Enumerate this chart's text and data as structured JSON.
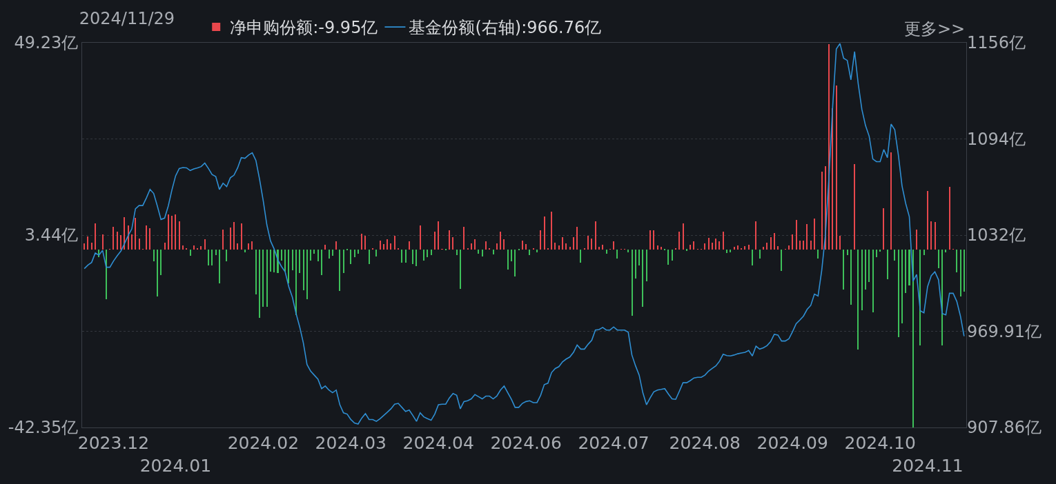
{
  "chart_data": {
    "type": "bar",
    "title": "2024/11/29",
    "annotations": [
      "更多>>"
    ],
    "categories": [
      null,
      null,
      null,
      null,
      null,
      null,
      null,
      null,
      "2023.12",
      null,
      null,
      null,
      null,
      null,
      null,
      null,
      null,
      null,
      null,
      null,
      null,
      null,
      null,
      null,
      null,
      "2024.01",
      null,
      null,
      null,
      null,
      null,
      null,
      null,
      null,
      null,
      null,
      null,
      null,
      null,
      null,
      null,
      null,
      null,
      null,
      null,
      null,
      null,
      null,
      null,
      "2024.02",
      null,
      null,
      null,
      null,
      null,
      null,
      null,
      null,
      null,
      null,
      null,
      null,
      null,
      null,
      null,
      null,
      null,
      null,
      null,
      null,
      null,
      null,
      null,
      "2024.03",
      null,
      null,
      null,
      null,
      null,
      null,
      null,
      null,
      null,
      null,
      null,
      null,
      null,
      null,
      null,
      null,
      null,
      null,
      null,
      null,
      null,
      null,
      null,
      "2024.04",
      null,
      null,
      null,
      null,
      null,
      null,
      null,
      null,
      null,
      null,
      null,
      null,
      null,
      null,
      null,
      null,
      null,
      null,
      null,
      null,
      null,
      null,
      null,
      "2024.06",
      null,
      null,
      null,
      null,
      null,
      null,
      null,
      null,
      null,
      null,
      null,
      null,
      null,
      null,
      null,
      null,
      null,
      null,
      null,
      null,
      null,
      null,
      null,
      "2024.07",
      null,
      null,
      null,
      null,
      null,
      null,
      null,
      null,
      null,
      null,
      null,
      null,
      null,
      null,
      null,
      null,
      null,
      null,
      null,
      null,
      null,
      null,
      null,
      null,
      "2024.08",
      null,
      null,
      null,
      null,
      null,
      null,
      null,
      null,
      null,
      null,
      null,
      null,
      null,
      null,
      null,
      null,
      null,
      null,
      null,
      null,
      null,
      null,
      null,
      "2024.09",
      null,
      null,
      null,
      null,
      null,
      null,
      null,
      null,
      null,
      null,
      null,
      null,
      null,
      null,
      null,
      null,
      null,
      null,
      null,
      null,
      null,
      null,
      null,
      "2024.10",
      null,
      null,
      null,
      null,
      null,
      null,
      null,
      null,
      null,
      null,
      null,
      null,
      "2024.11",
      null,
      null,
      null,
      null,
      null,
      null,
      null,
      null,
      null,
      null
    ],
    "series": [
      {
        "name": "净申购份额:-9.95亿",
        "values": [
          1.4,
          3.1,
          1.6,
          6.3,
          -1.8,
          3.6,
          -11.9,
          0.1,
          5.4,
          4.2,
          3.5,
          7.7,
          5.7,
          3.6,
          7.5,
          2.7,
          0.1,
          5.7,
          5.1,
          -2.8,
          -11.1,
          -6.0,
          1.7,
          8.4,
          8.0,
          8.3,
          6.7,
          0.9,
          0.3,
          -1.5,
          0.9,
          0.4,
          0.8,
          2.5,
          -3.8,
          -3.8,
          -1.3,
          -8.1,
          4.7,
          -2.8,
          5.2,
          6.6,
          1.4,
          6.3,
          -0.6,
          1.5,
          2.0,
          -10.6,
          -16.3,
          -13.6,
          -13.6,
          -5.3,
          -5.4,
          -5.6,
          -2.6,
          -5.3,
          -8.1,
          -5.0,
          -15.6,
          -5.6,
          -9.7,
          -11.9,
          -2.6,
          -1.0,
          -2.8,
          -6.0,
          1.2,
          -2.1,
          -1.5,
          1.9,
          -9.8,
          -5.6,
          -0.2,
          -3.4,
          -1.8,
          -1.0,
          3.8,
          3.2,
          -3.5,
          0.4,
          -1.7,
          2.2,
          1.3,
          2.5,
          1.4,
          3.3,
          0.3,
          -3.1,
          -3.1,
          1.9,
          -3.4,
          -3.9,
          5.7,
          -2.6,
          -1.8,
          -1.3,
          4.2,
          6.7,
          0.1,
          -0.2,
          4.6,
          2.9,
          -1.3,
          -9.3,
          5.4,
          0.3,
          1.4,
          2.5,
          -1.0,
          -1.7,
          1.9,
          0.3,
          -1.2,
          1.4,
          4.2,
          2.5,
          -4.7,
          -2.8,
          -6.4,
          -0.2,
          2.2,
          1.3,
          -1.3,
          0.4,
          -0.6,
          4.6,
          7.9,
          0.3,
          9.1,
          1.7,
          0.9,
          2.9,
          1.4,
          0.7,
          3.0,
          5.4,
          -3.2,
          0.3,
          3.3,
          2.6,
          6.7,
          0.7,
          1.1,
          -1.0,
          0.1,
          1.9,
          -2.2,
          0.1,
          0.1,
          -0.7,
          -15.7,
          -6.9,
          -3.7,
          -13.6,
          -7.6,
          4.6,
          4.6,
          1.0,
          0.6,
          -0.2,
          -3.6,
          -2.6,
          0.4,
          4.3,
          6.3,
          -0.3,
          1.1,
          1.9,
          0.1,
          0.1,
          1.4,
          2.8,
          1.7,
          2.7,
          2.0,
          4.2,
          -0.8,
          -0.6,
          0.6,
          0.9,
          0.4,
          0.8,
          1.1,
          -3.8,
          6.8,
          -2.1,
          0.7,
          1.7,
          3.0,
          4.0,
          0.8,
          -5.1,
          0.1,
          0.9,
          3.6,
          7.0,
          2.2,
          2.2,
          6.0,
          2.2,
          7.3,
          -2.2,
          18.5,
          19.9,
          48.9,
          33.7,
          39.1,
          3.3,
          -9.5,
          -1.3,
          -13.2,
          20.4,
          -23.8,
          -14.4,
          -9.5,
          -7.7,
          -14.9,
          -1.8,
          -0.5,
          9.9,
          -7.1,
          23.2,
          -2.6,
          -20.8,
          -17.5,
          -10.3,
          -8.5,
          -42.3,
          4.7,
          -22.9,
          -1.3,
          14.0,
          6.8,
          6.5,
          -4.5,
          -22.9,
          -0.6,
          15.0,
          0.1,
          -5.5,
          -11.1,
          -9.95
        ],
        "colors": [
          "#e8474c",
          "#e8474c",
          "#e8474c",
          "#e8474c",
          "#3ec15a",
          "#e8474c",
          "#3ec15a",
          "#e8474c",
          "#e8474c",
          "#e8474c",
          "#e8474c",
          "#e8474c",
          "#e8474c",
          "#e8474c",
          "#e8474c",
          "#e8474c",
          "#e8474c",
          "#e8474c",
          "#e8474c",
          "#3ec15a",
          "#3ec15a",
          "#3ec15a",
          "#e8474c",
          "#e8474c",
          "#e8474c",
          "#e8474c",
          "#e8474c",
          "#e8474c",
          "#e8474c",
          "#3ec15a",
          "#e8474c",
          "#e8474c",
          "#e8474c",
          "#e8474c",
          "#3ec15a",
          "#3ec15a",
          "#3ec15a",
          "#3ec15a",
          "#e8474c",
          "#3ec15a",
          "#e8474c",
          "#e8474c",
          "#e8474c",
          "#e8474c",
          "#3ec15a",
          "#e8474c",
          "#e8474c",
          "#3ec15a",
          "#3ec15a",
          "#3ec15a",
          "#3ec15a",
          "#3ec15a",
          "#3ec15a",
          "#3ec15a",
          "#3ec15a",
          "#3ec15a",
          "#3ec15a",
          "#3ec15a",
          "#3ec15a",
          "#3ec15a",
          "#3ec15a",
          "#3ec15a",
          "#3ec15a",
          "#3ec15a",
          "#3ec15a",
          "#3ec15a",
          "#e8474c",
          "#3ec15a",
          "#3ec15a",
          "#e8474c",
          "#3ec15a",
          "#3ec15a",
          "#3ec15a",
          "#3ec15a",
          "#3ec15a",
          "#3ec15a",
          "#e8474c",
          "#e8474c",
          "#3ec15a",
          "#e8474c",
          "#3ec15a",
          "#e8474c",
          "#e8474c",
          "#e8474c",
          "#e8474c",
          "#e8474c",
          "#e8474c",
          "#3ec15a",
          "#3ec15a",
          "#e8474c",
          "#3ec15a",
          "#3ec15a",
          "#e8474c",
          "#3ec15a",
          "#3ec15a",
          "#3ec15a",
          "#e8474c",
          "#e8474c",
          "#e8474c",
          "#3ec15a",
          "#e8474c",
          "#e8474c",
          "#3ec15a",
          "#3ec15a",
          "#e8474c",
          "#e8474c",
          "#e8474c",
          "#e8474c",
          "#3ec15a",
          "#3ec15a",
          "#e8474c",
          "#e8474c",
          "#3ec15a",
          "#e8474c",
          "#e8474c",
          "#e8474c",
          "#3ec15a",
          "#3ec15a",
          "#3ec15a",
          "#3ec15a",
          "#e8474c",
          "#e8474c",
          "#3ec15a",
          "#e8474c",
          "#3ec15a",
          "#e8474c",
          "#e8474c",
          "#e8474c",
          "#e8474c",
          "#e8474c",
          "#e8474c",
          "#e8474c",
          "#e8474c",
          "#e8474c",
          "#e8474c",
          "#e8474c",
          "#3ec15a",
          "#e8474c",
          "#e8474c",
          "#e8474c",
          "#e8474c",
          "#e8474c",
          "#e8474c",
          "#3ec15a",
          "#e8474c",
          "#e8474c",
          "#3ec15a",
          "#e8474c",
          "#e8474c",
          "#3ec15a",
          "#3ec15a",
          "#3ec15a",
          "#3ec15a",
          "#3ec15a",
          "#3ec15a",
          "#e8474c",
          "#e8474c",
          "#e8474c",
          "#e8474c",
          "#3ec15a",
          "#3ec15a",
          "#3ec15a",
          "#e8474c",
          "#e8474c",
          "#e8474c",
          "#3ec15a",
          "#e8474c",
          "#e8474c",
          "#e8474c",
          "#e8474c",
          "#e8474c",
          "#e8474c",
          "#e8474c",
          "#e8474c",
          "#e8474c",
          "#e8474c",
          "#3ec15a",
          "#3ec15a",
          "#e8474c",
          "#e8474c",
          "#e8474c",
          "#e8474c",
          "#e8474c",
          "#3ec15a",
          "#e8474c",
          "#3ec15a",
          "#e8474c",
          "#e8474c",
          "#e8474c",
          "#e8474c",
          "#e8474c",
          "#3ec15a",
          "#e8474c",
          "#e8474c",
          "#e8474c",
          "#e8474c",
          "#e8474c",
          "#e8474c",
          "#e8474c",
          "#e8474c",
          "#e8474c",
          "#3ec15a",
          "#e8474c",
          "#e8474c",
          "#e8474c",
          "#e8474c",
          "#e8474c",
          "#e8474c",
          "#3ec15a",
          "#3ec15a",
          "#3ec15a",
          "#e8474c",
          "#3ec15a",
          "#3ec15a",
          "#3ec15a",
          "#3ec15a",
          "#3ec15a",
          "#3ec15a",
          "#3ec15a",
          "#e8474c",
          "#3ec15a",
          "#e8474c",
          "#3ec15a",
          "#3ec15a",
          "#3ec15a",
          "#3ec15a",
          "#3ec15a",
          "#3ec15a",
          "#e8474c",
          "#3ec15a",
          "#3ec15a",
          "#e8474c",
          "#e8474c",
          "#e8474c",
          "#3ec15a",
          "#3ec15a",
          "#3ec15a",
          "#e8474c",
          "#e8474c",
          "#3ec15a",
          "#3ec15a",
          "#3ec15a"
        ]
      },
      {
        "name": "基金份额(右轴):966.76亿",
        "type": "line",
        "axis": "y2",
        "color": "#2f8fd3",
        "values": [
          1010.3,
          1012.6,
          1014.3,
          1020.4,
          1019.0,
          1022.1,
          1011.2,
          1011.2,
          1015.2,
          1018.6,
          1021.6,
          1026.4,
          1031.6,
          1035.9,
          1048.9,
          1051.0,
          1051.0,
          1055.9,
          1061.4,
          1058.8,
          1050.7,
          1042.0,
          1042.9,
          1050.7,
          1061.1,
          1070.1,
          1074.9,
          1075.5,
          1075.3,
          1073.6,
          1074.6,
          1075.3,
          1076.1,
          1078.4,
          1074.9,
          1071.0,
          1069.7,
          1061.4,
          1065.4,
          1063.2,
          1068.9,
          1070.6,
          1075.3,
          1081.9,
          1081.5,
          1083.6,
          1085.0,
          1080.1,
          1068.0,
          1054.2,
          1038.6,
          1028.2,
          1023.0,
          1016.0,
          1011.7,
          1008.3,
          998.7,
          991.8,
          981.4,
          972.7,
          962.4,
          948.5,
          944.2,
          941.6,
          939.0,
          932.9,
          934.6,
          932.0,
          930.3,
          932.0,
          922.5,
          917.3,
          916.5,
          913.0,
          910.7,
          910.1,
          913.9,
          916.8,
          913.0,
          913.0,
          911.8,
          913.5,
          915.6,
          917.7,
          919.9,
          922.9,
          923.4,
          920.8,
          918.2,
          919.1,
          915.6,
          911.8,
          917.3,
          914.7,
          913.5,
          912.5,
          916.5,
          922.5,
          922.9,
          922.9,
          926.9,
          929.8,
          928.6,
          919.9,
          924.6,
          925.1,
          926.3,
          929.1,
          927.7,
          926.3,
          928.1,
          928.1,
          926.3,
          928.1,
          932.0,
          934.6,
          930.3,
          926.0,
          920.8,
          920.8,
          923.4,
          924.6,
          925.1,
          923.9,
          923.9,
          928.6,
          935.5,
          936.4,
          943.3,
          945.9,
          947.1,
          950.2,
          952.0,
          953.3,
          956.3,
          961.0,
          958.4,
          958.4,
          961.5,
          964.1,
          970.7,
          971.0,
          972.4,
          970.7,
          970.7,
          972.7,
          970.7,
          970.7,
          970.7,
          969.3,
          954.6,
          947.6,
          941.6,
          930.3,
          922.5,
          926.9,
          930.8,
          932.0,
          932.4,
          932.9,
          929.4,
          926.3,
          926.0,
          931.2,
          936.7,
          936.7,
          938.1,
          939.8,
          940.2,
          940.2,
          941.6,
          944.2,
          945.9,
          947.6,
          950.6,
          955.1,
          954.2,
          954.0,
          954.6,
          955.4,
          955.9,
          956.3,
          957.5,
          954.0,
          960.3,
          958.4,
          959.2,
          960.6,
          963.2,
          967.9,
          967.5,
          963.6,
          963.6,
          965.0,
          969.6,
          974.8,
          977.1,
          979.7,
          984.0,
          986.6,
          993.9,
          992.7,
          1009.1,
          1031.6,
          1069.7,
          1114.8,
          1152.0,
          1155.5,
          1146.0,
          1144.6,
          1132.1,
          1150.3,
          1129.5,
          1113.0,
          1102.6,
          1095.7,
          1081.0,
          1079.3,
          1079.3,
          1087.1,
          1081.9,
          1103.5,
          1100.0,
          1083.6,
          1063.7,
          1052.4,
          1043.8,
          1002.2,
          1006.5,
          983.1,
          981.8,
          998.7,
          1005.7,
          1008.3,
          1003.1,
          981.4,
          980.5,
          994.4,
          994.4,
          989.2,
          979.7,
          966.76
        ]
      }
    ],
    "ylim": [
      -42.35,
      49.23
    ],
    "yticks": [
      {
        "value": -42.35,
        "label": "-42.35亿"
      },
      {
        "value": -19.455,
        "label": null
      },
      {
        "value": 3.44,
        "label": "3.44亿"
      },
      {
        "value": 26.335,
        "label": null
      },
      {
        "value": 49.23,
        "label": "49.23亿"
      }
    ],
    "y2lim": [
      907.86,
      1156
    ],
    "y2ticks": [
      {
        "value": 907.86,
        "label": "907.86亿"
      },
      {
        "value": 969.91,
        "label": "969.91亿"
      },
      {
        "value": 1032,
        "label": "1032亿"
      },
      {
        "value": 1094,
        "label": "1094亿"
      },
      {
        "value": 1156,
        "label": "1156亿"
      }
    ],
    "grid": "y",
    "legend": "top left"
  }
}
